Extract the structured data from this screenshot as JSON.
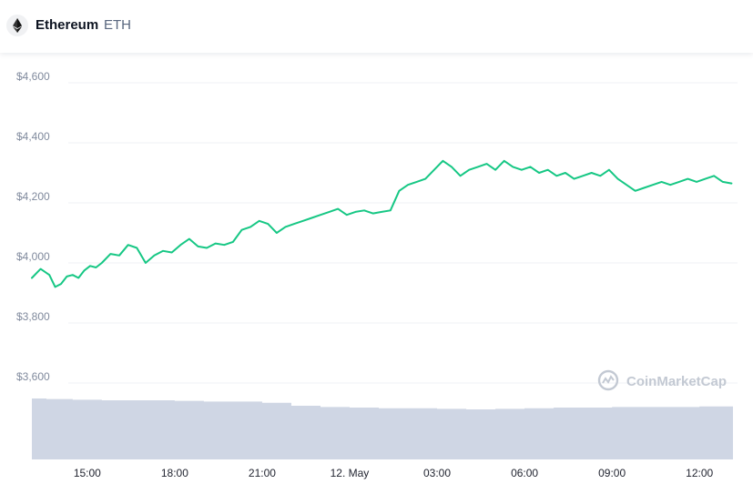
{
  "header": {
    "name": "Ethereum",
    "symbol": "ETH",
    "icon": "ethereum-icon"
  },
  "watermark": {
    "text": "CoinMarketCap",
    "icon": "coinmarketcap-logo-icon"
  },
  "colors": {
    "price_line": "#16c784",
    "volume_fill": "#cfd6e4",
    "grid": "#eff2f5",
    "axis_text": "#808a9d"
  },
  "chart_data": {
    "type": "line",
    "title": "",
    "xlabel": "",
    "ylabel": "",
    "y_tick_labels": [
      "$4,600",
      "$4,400",
      "$4,200",
      "$4,000",
      "$3,800",
      "$3,600"
    ],
    "y_tick_values": [
      4600,
      4400,
      4200,
      4000,
      3800,
      3600
    ],
    "x_tick_labels": [
      "15:00",
      "18:00",
      "21:00",
      "12. May",
      "03:00",
      "06:00",
      "09:00",
      "12:00"
    ],
    "x_tick_hours": [
      3,
      6,
      9,
      12,
      15,
      18,
      21,
      24
    ],
    "x_range_hours": [
      1.1,
      25.15
    ],
    "ylim": [
      3550,
      4660
    ],
    "grid": true,
    "series": [
      {
        "kind": "price",
        "x_hours": [
          1.1,
          1.4,
          1.7,
          1.9,
          2.1,
          2.3,
          2.5,
          2.7,
          2.9,
          3.1,
          3.3,
          3.5,
          3.8,
          4.1,
          4.4,
          4.7,
          5.0,
          5.3,
          5.6,
          5.9,
          6.2,
          6.5,
          6.8,
          7.1,
          7.4,
          7.7,
          8.0,
          8.3,
          8.6,
          8.9,
          9.2,
          9.5,
          9.8,
          10.1,
          10.4,
          10.7,
          11.0,
          11.3,
          11.6,
          11.9,
          12.2,
          12.5,
          12.8,
          13.1,
          13.4,
          13.7,
          14.0,
          14.3,
          14.6,
          14.9,
          15.2,
          15.5,
          15.8,
          16.1,
          16.4,
          16.7,
          17.0,
          17.3,
          17.6,
          17.9,
          18.2,
          18.5,
          18.8,
          19.1,
          19.4,
          19.7,
          20.0,
          20.3,
          20.6,
          20.9,
          21.2,
          21.5,
          21.8,
          22.1,
          22.4,
          22.7,
          23.0,
          23.3,
          23.6,
          23.9,
          24.2,
          24.5,
          24.8,
          25.1
        ],
        "values": [
          3950,
          3980,
          3960,
          3920,
          3930,
          3955,
          3960,
          3950,
          3975,
          3990,
          3985,
          4000,
          4030,
          4025,
          4060,
          4050,
          4000,
          4025,
          4040,
          4035,
          4060,
          4080,
          4055,
          4050,
          4065,
          4060,
          4070,
          4110,
          4120,
          4140,
          4130,
          4100,
          4120,
          4130,
          4140,
          4150,
          4160,
          4170,
          4180,
          4160,
          4170,
          4175,
          4165,
          4170,
          4175,
          4240,
          4260,
          4270,
          4280,
          4310,
          4340,
          4320,
          4290,
          4310,
          4320,
          4330,
          4310,
          4340,
          4320,
          4310,
          4320,
          4300,
          4310,
          4290,
          4300,
          4280,
          4290,
          4300,
          4290,
          4310,
          4280,
          4260,
          4240,
          4250,
          4260,
          4270,
          4260,
          4270,
          4280,
          4270,
          4280,
          4290,
          4270,
          4265
        ]
      },
      {
        "kind": "volume",
        "x_hours": [
          1.1,
          1.6,
          2.5,
          3.5,
          5.0,
          6.0,
          7.0,
          8.0,
          9.0,
          10.0,
          11.0,
          12.0,
          13.0,
          14.0,
          15.0,
          16.0,
          17.0,
          18.0,
          19.0,
          20.0,
          21.0,
          22.0,
          23.0,
          24.0,
          25.15
        ],
        "values": [
          1.0,
          0.99,
          0.98,
          0.97,
          0.97,
          0.96,
          0.95,
          0.95,
          0.93,
          0.88,
          0.86,
          0.85,
          0.84,
          0.84,
          0.83,
          0.82,
          0.83,
          0.84,
          0.85,
          0.85,
          0.86,
          0.86,
          0.86,
          0.87,
          0.87
        ]
      }
    ]
  }
}
